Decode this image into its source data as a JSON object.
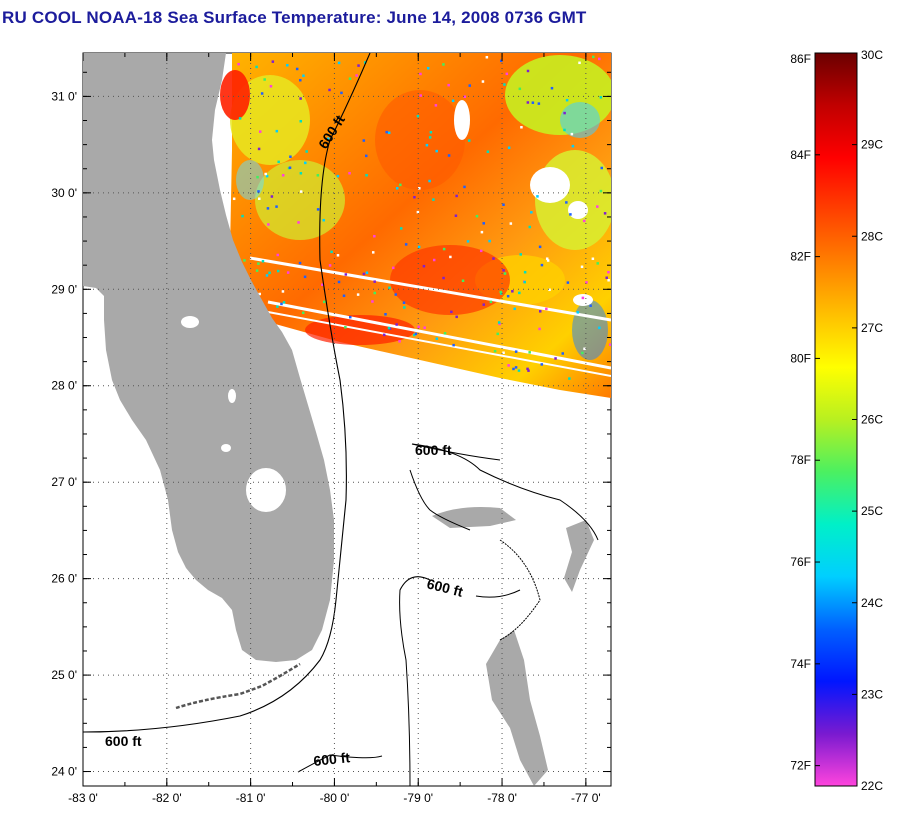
{
  "title": "RU COOL  NOAA-18  Sea Surface Temperature:  June 14, 2008 0736 GMT",
  "map": {
    "lon_labels": [
      "-83 0'",
      "-82 0'",
      "-81 0'",
      "-80 0'",
      "-79 0'",
      "-78 0'",
      "-77 0'"
    ],
    "lat_labels": [
      "31 0'",
      "30 0'",
      "29 0'",
      "28 0'",
      "27 0'",
      "26 0'",
      "25 0'",
      "24 0'"
    ],
    "lon_range": [
      -83,
      -76.7
    ],
    "lat_range": [
      23.85,
      31.45
    ],
    "land_color": "#a9a9a9",
    "water_color": "#ffffff",
    "isobath_label": "600 ft",
    "isobath_labels": [
      "600 ft",
      "600 ft",
      "600 ft",
      "600 ft",
      "600 ft"
    ]
  },
  "colorbar": {
    "celsius_labels": [
      "30C",
      "29C",
      "28C",
      "27C",
      "26C",
      "25C",
      "24C",
      "23C",
      "22C"
    ],
    "fahrenheit_labels": [
      "86F",
      "84F",
      "82F",
      "80F",
      "78F",
      "76F",
      "74F",
      "72F"
    ],
    "celsius_range": [
      22,
      30
    ],
    "colors": [
      "#ff44dd",
      "#7a1ad0",
      "#0016ff",
      "#0060ff",
      "#00cfff",
      "#00f0c8",
      "#4cf060",
      "#b8f020",
      "#ffff00",
      "#ffc000",
      "#ff8000",
      "#ff4000",
      "#ff0000",
      "#c00000",
      "#6b0000"
    ]
  }
}
